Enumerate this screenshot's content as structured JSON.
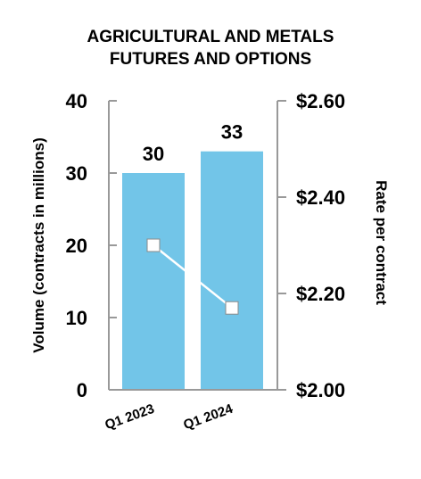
{
  "chart_data": {
    "type": "bar",
    "title_lines": [
      "AGRICULTURAL AND METALS",
      "FUTURES AND OPTIONS"
    ],
    "categories": [
      "Q1 2023",
      "Q1 2024"
    ],
    "series": [
      {
        "name": "Volume (contracts in millions)",
        "type": "bar",
        "axis": "left",
        "values": [
          30,
          33
        ],
        "data_labels": [
          "30",
          "33"
        ],
        "color": "#72C5E8"
      },
      {
        "name": "Rate per contract",
        "type": "line",
        "axis": "right",
        "values": [
          2.3,
          2.17
        ],
        "color": "#ffffff",
        "marker": "square"
      }
    ],
    "left_axis": {
      "label": "Volume (contracts in millions)",
      "ylim": [
        0,
        40
      ],
      "ticks": [
        0,
        10,
        20,
        30,
        40
      ],
      "tick_labels": [
        "0",
        "10",
        "20",
        "30",
        "40"
      ]
    },
    "right_axis": {
      "label": "Rate per contract",
      "ylim": [
        2.0,
        2.6
      ],
      "ticks": [
        2.0,
        2.2,
        2.4,
        2.6
      ],
      "tick_labels": [
        "$2.00",
        "$2.20",
        "$2.40",
        "$2.60"
      ]
    },
    "grid": false,
    "legend": "none",
    "colors": {
      "bar": "#72C5E8",
      "axis": "#999999",
      "line": "#ffffff",
      "marker_fill": "#ffffff",
      "marker_stroke": "#8a8a8a",
      "text": "#000000"
    }
  }
}
